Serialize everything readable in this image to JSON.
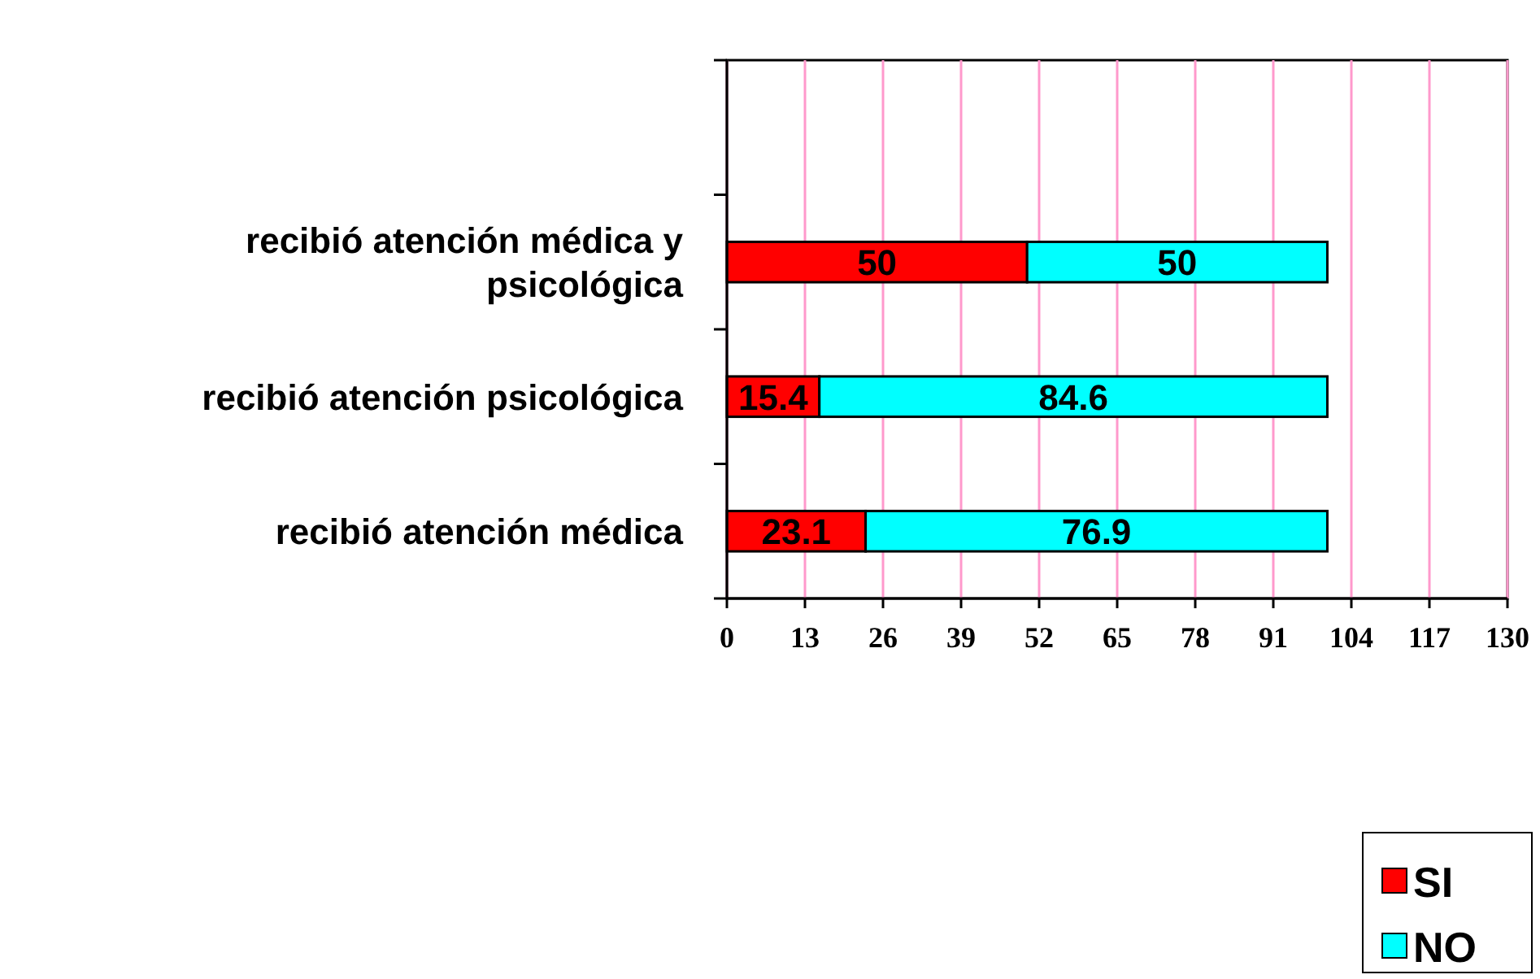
{
  "chart_data": {
    "type": "bar",
    "orientation": "horizontal",
    "stacked": true,
    "categories": [
      null,
      "recibió atención médica y psicológica",
      "recibió atención psicológica",
      "recibió atención médica"
    ],
    "series": [
      {
        "name": "SI",
        "color": "#ff0000",
        "values": [
          null,
          50,
          15.4,
          23.1
        ]
      },
      {
        "name": "NO",
        "color": "#00ffff",
        "values": [
          null,
          50,
          84.6,
          76.9
        ]
      }
    ],
    "xlim": [
      0,
      130
    ],
    "xticks": [
      0,
      13,
      26,
      39,
      52,
      65,
      78,
      91,
      104,
      117,
      130
    ],
    "grid": "x",
    "legend": "bottom right",
    "data_labels": true
  }
}
